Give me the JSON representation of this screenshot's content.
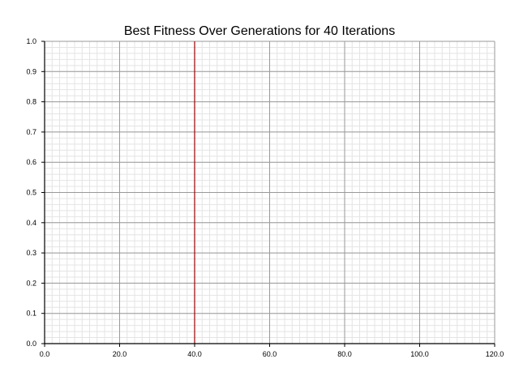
{
  "chart_data": {
    "type": "line",
    "title": "Best Fitness Over Generations for 40 Iterations",
    "xlabel": "",
    "ylabel": "",
    "xlim": [
      0,
      120
    ],
    "ylim": [
      0,
      1
    ],
    "x_ticks": [
      "0.0",
      "20.0",
      "40.0",
      "60.0",
      "80.0",
      "100.0",
      "120.0"
    ],
    "x_tick_values": [
      0,
      20,
      40,
      60,
      80,
      100,
      120
    ],
    "y_ticks": [
      "0.0",
      "0.1",
      "0.2",
      "0.3",
      "0.4",
      "0.5",
      "0.6",
      "0.7",
      "0.8",
      "0.9",
      "1.0"
    ],
    "y_tick_values": [
      0,
      0.1,
      0.2,
      0.3,
      0.4,
      0.5,
      0.6,
      0.7,
      0.8,
      0.9,
      1.0
    ],
    "x_minor_step": 2,
    "y_minor_step": 0.02,
    "grid": true,
    "legend": "none",
    "vertical_marker": {
      "x": 40,
      "color": "#990000"
    },
    "colors": {
      "major_grid": "#999999",
      "minor_grid": "#e4e4e4",
      "axis": "#000000",
      "marker": "#990000"
    }
  }
}
